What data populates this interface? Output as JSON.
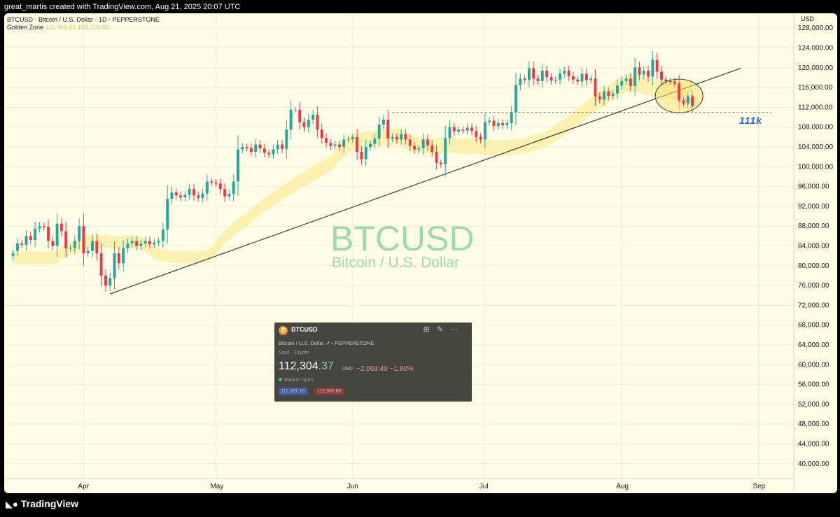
{
  "header": {
    "credit": "great_martis created with TradingView.com, Aug 21, 2025 20:07 UTC"
  },
  "legend": {
    "line1": "BTCUSD · Bitcoin / U.S. Dollar · 1D · PEPPERSTONE",
    "line2_label": "Golden Zone",
    "line2_v1": "111,769.61",
    "line2_v2": "108,720.82"
  },
  "watermark": {
    "symbol": "BTCUSD",
    "name": "Bitcoin / U.S. Dollar"
  },
  "annotation": {
    "level_label": "111k"
  },
  "colors": {
    "background": "#fffde6",
    "up_candle": "#26a69a",
    "down_candle": "#f23645",
    "golden_zone": "#fbeea6",
    "trendline": "#4a4a4a"
  },
  "chart_data": {
    "type": "candlestick",
    "currency": "USD",
    "y_ticks": [
      "128,000.00",
      "124,000.00",
      "120,000.00",
      "116,000.00",
      "112,000.00",
      "108,000.00",
      "104,000.00",
      "100,000.00",
      "96,000.00",
      "92,000.00",
      "88,000.00",
      "84,000.00",
      "80,000.00",
      "76,000.00",
      "72,000.00",
      "68,000.00",
      "64,000.00",
      "60,000.00",
      "56,000.00",
      "52,000.00",
      "48,000.00",
      "44,000.00",
      "40,000.00"
    ],
    "x_ticks": [
      "Apr",
      "May",
      "Jun",
      "Jul",
      "Aug",
      "Sep"
    ],
    "ylim": [
      37000,
      131000
    ],
    "xlim": [
      "2025-03-14",
      "2025-09-09"
    ],
    "grid": true,
    "candles_close": [
      82500,
      84500,
      84200,
      86000,
      85200,
      87500,
      88000,
      87800,
      85000,
      84000,
      88500,
      87000,
      83500,
      83600,
      85000,
      88000,
      82500,
      83000,
      85000,
      82500,
      78000,
      76000,
      77500,
      82500,
      80500,
      83500,
      84500,
      85000,
      84000,
      84500,
      85000,
      84300,
      84700,
      85000,
      87300,
      93500,
      94800,
      94200,
      93800,
      94300,
      95500,
      94200,
      93700,
      94600,
      97000,
      96800,
      96600,
      95500,
      94000,
      94500,
      97000,
      103500,
      104000,
      103800,
      103000,
      104500,
      103700,
      102800,
      102500,
      103500,
      104500,
      103600,
      107500,
      111500,
      111500,
      109000,
      108000,
      109500,
      110500,
      107500,
      105800,
      104800,
      104200,
      104500,
      104000,
      105500,
      105600,
      106000,
      103000,
      101500,
      104000,
      104600,
      105700,
      108500,
      109500,
      105700,
      106000,
      105500,
      106600,
      105500,
      104200,
      103500,
      103700,
      105500,
      104300,
      103000,
      100800,
      100500,
      105800,
      108000,
      107100,
      107500,
      107300,
      107900,
      107200,
      106000,
      105500,
      109000,
      109300,
      108200,
      108800,
      108400,
      108800,
      111000,
      116500,
      117800,
      117500,
      119900,
      117800,
      117300,
      119400,
      118100,
      117400,
      117600,
      118800,
      119400,
      118300,
      117600,
      117200,
      118800,
      117500,
      117800,
      114200,
      113600,
      115200,
      114300,
      114800,
      116400,
      117300,
      117800,
      116300,
      120100,
      118600,
      119400,
      118200,
      121600,
      119200,
      117600,
      117300,
      117200,
      116800,
      113400,
      112800,
      114200,
      112300
    ],
    "candles_open": [
      82000,
      83000,
      84500,
      84200,
      86000,
      85200,
      87500,
      88000,
      87800,
      85000,
      84000,
      88500,
      87000,
      83500,
      83600,
      85000,
      88000,
      82500,
      83000,
      85000,
      82500,
      78000,
      76000,
      77500,
      82500,
      80500,
      83500,
      84500,
      85000,
      84000,
      84500,
      85000,
      84300,
      84700,
      85000,
      87300,
      93500,
      94800,
      94200,
      93800,
      94300,
      95500,
      94200,
      93700,
      94600,
      97000,
      96800,
      96600,
      95500,
      94000,
      94500,
      97000,
      103500,
      104000,
      103800,
      103000,
      104500,
      103700,
      102800,
      102500,
      103500,
      104500,
      103600,
      107500,
      111500,
      111500,
      109000,
      108000,
      109500,
      110500,
      107500,
      105800,
      104800,
      104200,
      104500,
      104000,
      105500,
      105600,
      106000,
      103000,
      101500,
      104000,
      104600,
      105700,
      108500,
      109500,
      105700,
      106000,
      105500,
      106600,
      105500,
      104200,
      103500,
      103700,
      105500,
      104300,
      103000,
      100800,
      100500,
      105800,
      108000,
      107100,
      107500,
      107300,
      107900,
      107200,
      106000,
      105500,
      109000,
      109300,
      108200,
      108800,
      108400,
      108800,
      111000,
      116500,
      117800,
      117500,
      119900,
      117800,
      117300,
      119400,
      118100,
      117400,
      117600,
      118800,
      119400,
      118300,
      117600,
      117200,
      118800,
      117500,
      117800,
      114200,
      113600,
      115200,
      114300,
      114800,
      116400,
      117300,
      117800,
      116300,
      120100,
      118600,
      119400,
      118200,
      121600,
      119200,
      117600,
      117300,
      117200,
      116800,
      113400,
      112800,
      114200
    ],
    "start_date": "2025-03-16",
    "dates_description": "",
    "trendline": {
      "from": [
        "2025-04-07",
        74300
      ],
      "to": [
        "2025-08-28",
        119900
      ]
    },
    "horizontal_level": {
      "value": 111000,
      "from": "2025-06-10",
      "to": "2025-09-04"
    },
    "golden_zone_band": {
      "upper": 111769.61,
      "lower": 108720.82
    }
  },
  "quote_card": {
    "symbol": "BTCUSD",
    "description": "Bitcoin / U.S. Dollar",
    "exchange": "PEPPERSTONE",
    "type": "Spot · Crypto",
    "price_main": "112,304",
    "price_hi": ".37",
    "unit": "USD",
    "change": "−2,063.49  −1.80%",
    "market_status": "Market open",
    "bid": "112,287.18",
    "ask": "112,302.80",
    "icon_glyph": "₿"
  },
  "footer": {
    "brand": "TradingView"
  }
}
